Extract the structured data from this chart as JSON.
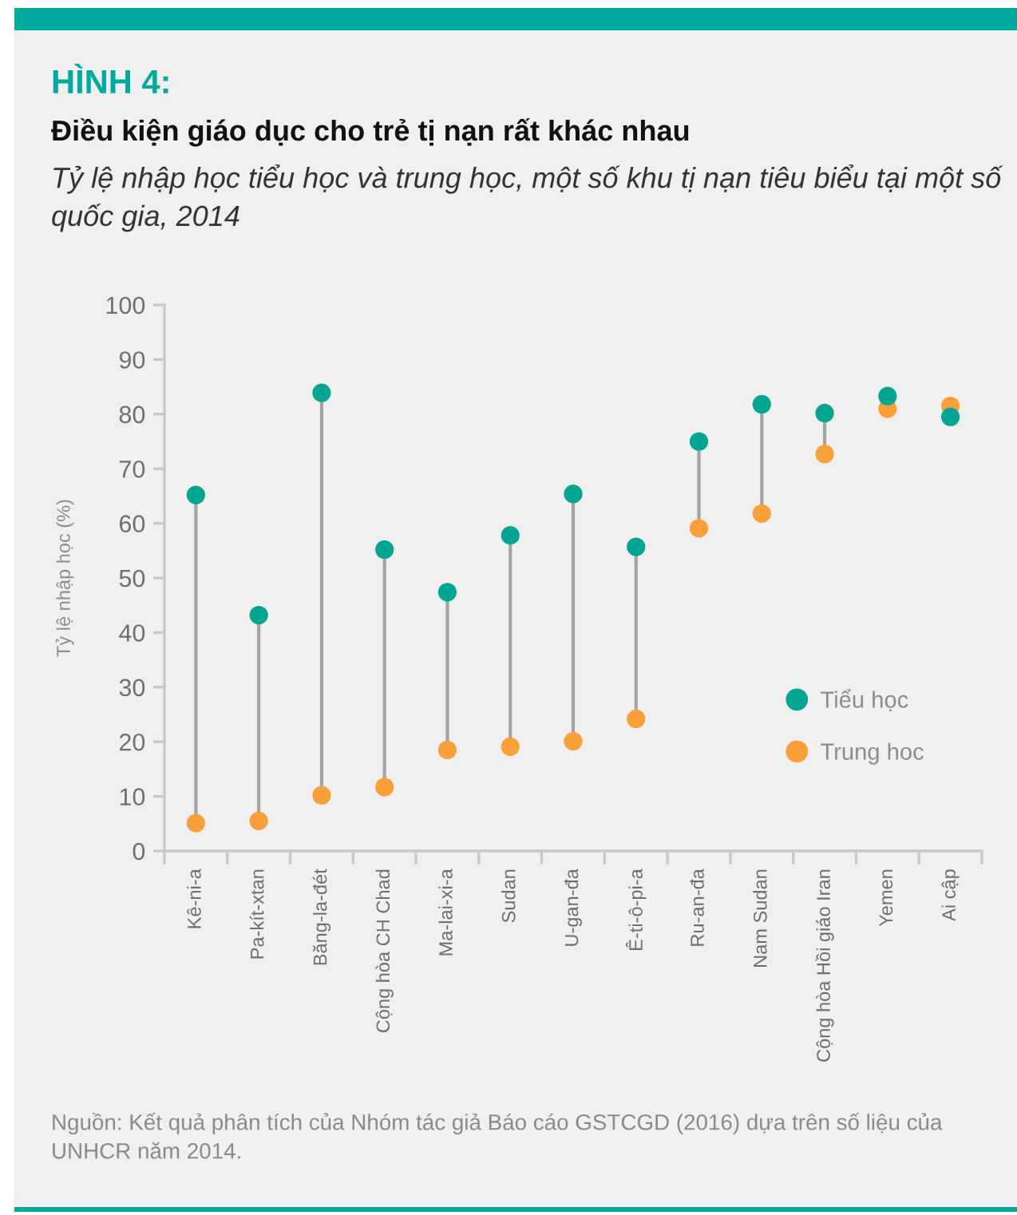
{
  "chart_data": {
    "type": "scatter",
    "title": "Điều kiện giáo dục cho trẻ tị nạn rất khác nhau",
    "subtitle": "Tỷ lệ nhập học tiểu học và trung học, một số khu tị nạn tiêu biểu tại một số quốc gia, 2014",
    "ylabel": "Tỷ lệ nhập học (%)",
    "annotations": [
      "HÌNH 4:",
      "Nguồn: Kết quả phân tích của Nhóm tác giả Báo cáo GSTCGD (2016) dựa trên số liệu của UNHCR năm 2014."
    ],
    "categories": [
      "Kê-ni-a",
      "Pa-kít-xtan",
      "Băng-la-đét",
      "Cộng hòa CH Chad",
      "Ma-lai-xi-a",
      "Sudan",
      "U-gan-đa",
      "Ê-ti-ô-pi-a",
      "Ru-an-đa",
      "Nam Sudan",
      "Cộng hòa Hồi giáo Iran",
      "Yemen",
      "Ai cập"
    ],
    "series": [
      {
        "name": "Tiểu học",
        "color": "#00a693",
        "values": [
          65.2,
          43.2,
          83.9,
          55.2,
          47.4,
          57.8,
          65.4,
          55.7,
          75.0,
          81.8,
          80.2,
          83.3,
          79.5
        ]
      },
      {
        "name": "Trung hoc",
        "color": "#f9a03b",
        "values": [
          5.1,
          5.5,
          10.2,
          11.7,
          18.5,
          19.1,
          20.1,
          24.2,
          59.1,
          61.8,
          72.7,
          81.0,
          81.5
        ]
      }
    ],
    "ylim": [
      0,
      100
    ],
    "yticks": [
      0,
      10,
      20,
      30,
      40,
      50,
      60,
      70,
      80,
      90,
      100
    ],
    "legend": "bottom right",
    "marker": "circle"
  }
}
